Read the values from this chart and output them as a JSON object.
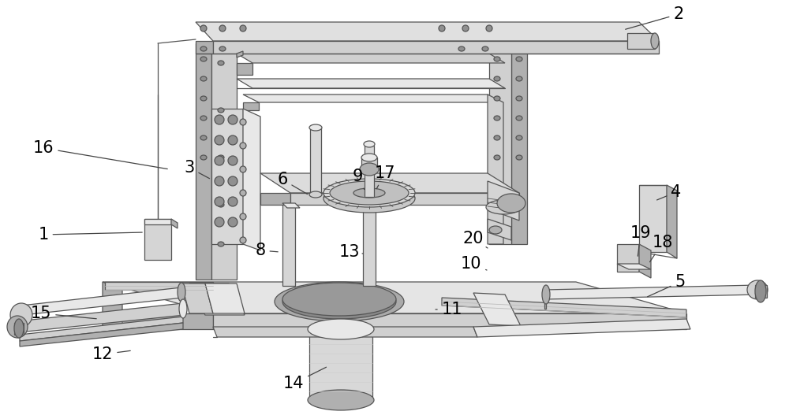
{
  "bg": "#ffffff",
  "lc": "#555555",
  "fc_light": "#e8e8e8",
  "fc_mid": "#d0d0d0",
  "fc_dark": "#b0b0b0",
  "fc_darker": "#909090",
  "lw": 0.9,
  "annotations": [
    [
      "2",
      860,
      18,
      790,
      38
    ],
    [
      "16",
      55,
      188,
      215,
      215
    ],
    [
      "1",
      55,
      298,
      183,
      295
    ],
    [
      "3",
      240,
      213,
      268,
      228
    ],
    [
      "6",
      358,
      228,
      392,
      248
    ],
    [
      "9",
      453,
      224,
      463,
      243
    ],
    [
      "17",
      488,
      220,
      476,
      242
    ],
    [
      "8",
      330,
      318,
      355,
      320
    ],
    [
      "13",
      443,
      320,
      460,
      322
    ],
    [
      "20",
      600,
      303,
      618,
      315
    ],
    [
      "10",
      597,
      335,
      617,
      343
    ],
    [
      "4",
      857,
      244,
      830,
      255
    ],
    [
      "19",
      812,
      296,
      808,
      328
    ],
    [
      "18",
      840,
      308,
      822,
      335
    ],
    [
      "5",
      862,
      358,
      818,
      378
    ],
    [
      "15",
      52,
      398,
      125,
      405
    ],
    [
      "12",
      130,
      450,
      168,
      445
    ],
    [
      "11",
      573,
      393,
      552,
      393
    ],
    [
      "14",
      372,
      487,
      416,
      465
    ]
  ],
  "font_size": 15
}
